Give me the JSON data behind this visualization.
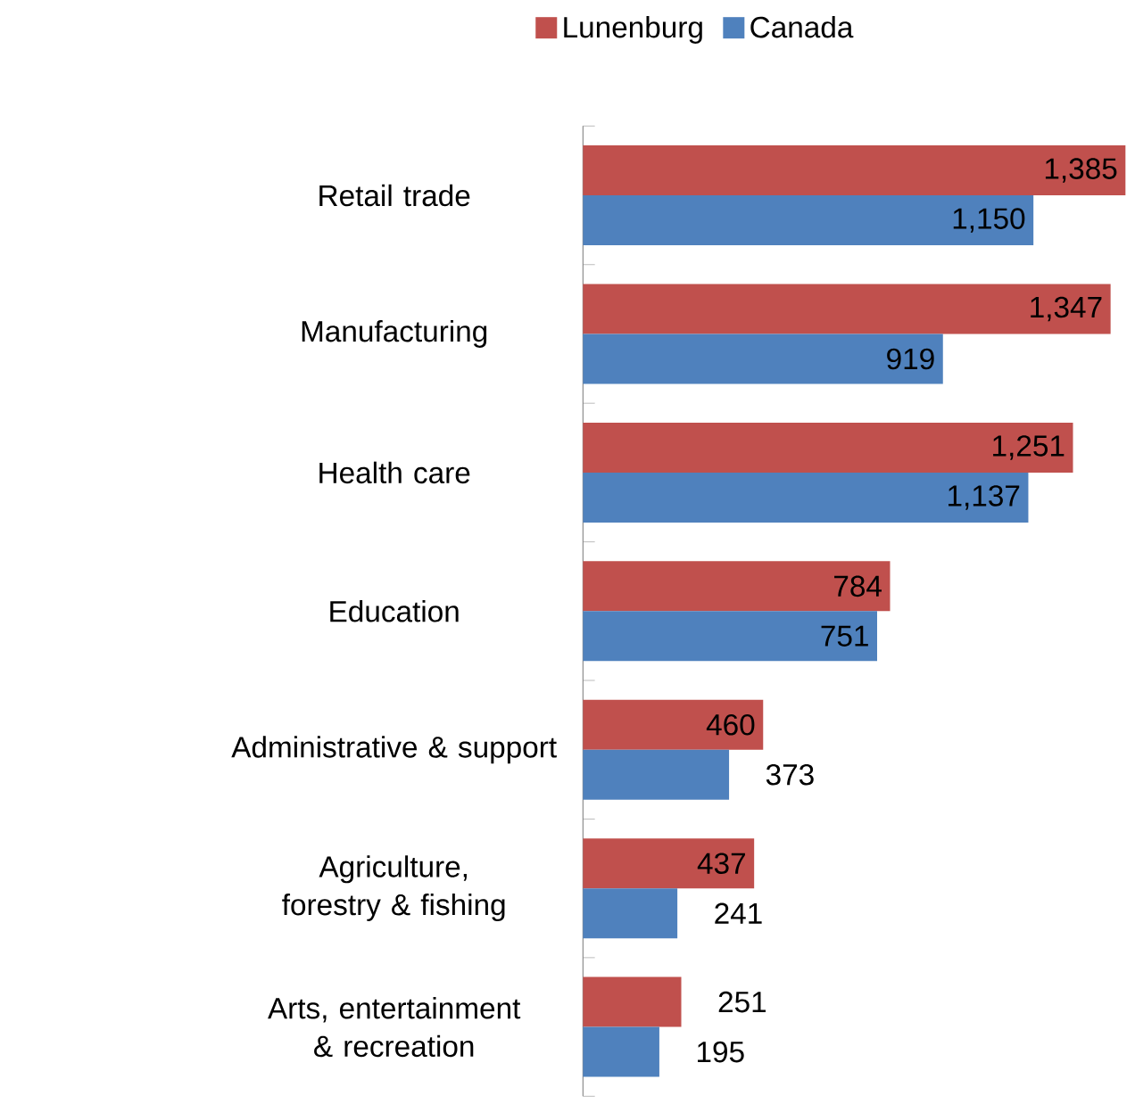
{
  "chart_data": {
    "type": "bar",
    "orientation": "horizontal",
    "categories": [
      "Retail trade",
      "Manufacturing",
      "Health care",
      "Education",
      "Administrative & support",
      "Agriculture, forestry & fishing",
      "Arts, entertainment & recreation"
    ],
    "series": [
      {
        "name": "Lunenburg",
        "color": "#c0504d",
        "values": [
          1385,
          1347,
          1251,
          784,
          460,
          437,
          251
        ],
        "value_labels": [
          "1,385",
          "1,347",
          "1,251",
          "784",
          "460",
          "437",
          "251"
        ]
      },
      {
        "name": "Canada",
        "color": "#4f81bd",
        "values": [
          1150,
          919,
          1137,
          751,
          373,
          241,
          195
        ],
        "value_labels": [
          "1,150",
          "919",
          "1,137",
          "751",
          "373",
          "241",
          "195"
        ]
      }
    ],
    "legend": "top"
  }
}
